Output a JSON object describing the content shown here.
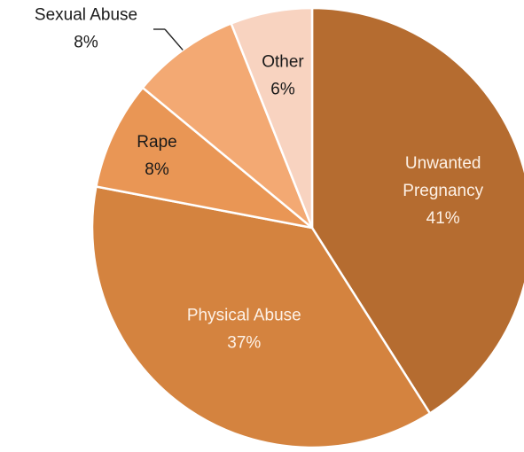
{
  "chart_data": {
    "type": "pie",
    "slices": [
      {
        "label": "Unwanted Pregnancy",
        "value": 41,
        "display": "41%",
        "color": "#b56c30"
      },
      {
        "label": "Physical Abuse",
        "value": 37,
        "display": "37%",
        "color": "#d4833f"
      },
      {
        "label": "Rape",
        "value": 8,
        "display": "8%",
        "color": "#e99655"
      },
      {
        "label": "Sexual Abuse",
        "value": 8,
        "display": "8%",
        "color": "#f3a973"
      },
      {
        "label": "Other",
        "value": 6,
        "display": "6%",
        "color": "#f8d3c0"
      }
    ]
  }
}
